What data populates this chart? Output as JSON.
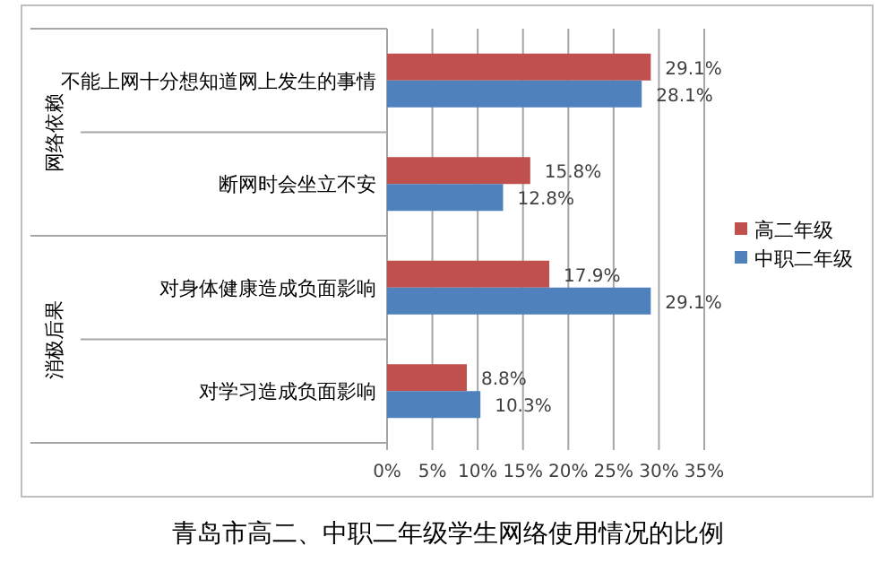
{
  "chart_data": {
    "type": "bar",
    "orientation": "horizontal",
    "title": "青岛市高二、中职二年级学生网络使用情况的比例",
    "categories": [
      "不能上网十分想知道网上发生的事情",
      "断网时会坐立不安",
      "对身体健康造成负面影响",
      "对学习造成负面影响"
    ],
    "annotations": [
      "网络依赖",
      "消极后果"
    ],
    "series": [
      {
        "name": "高二年级",
        "color": "#c0504d",
        "values": [
          29.1,
          15.8,
          17.9,
          8.8
        ],
        "value_labels": [
          "29.1%",
          "15.8%",
          "17.9%",
          "8.8%"
        ]
      },
      {
        "name": "中职二年级",
        "color": "#4f81bd",
        "values": [
          28.1,
          12.8,
          29.1,
          10.3
        ],
        "value_labels": [
          "28.1%",
          "12.8%",
          "29.1%",
          "10.3%"
        ]
      }
    ],
    "xlim": [
      0,
      35
    ],
    "xticks": [
      {
        "value": 0,
        "label": "0%"
      },
      {
        "value": 5,
        "label": "5%"
      },
      {
        "value": 10,
        "label": "10%"
      },
      {
        "value": 15,
        "label": "15%"
      },
      {
        "value": 20,
        "label": "20%"
      },
      {
        "value": 25,
        "label": "25%"
      },
      {
        "value": 30,
        "label": "30%"
      },
      {
        "value": 35,
        "label": "35%"
      }
    ],
    "grid": "x",
    "legend": "right"
  }
}
